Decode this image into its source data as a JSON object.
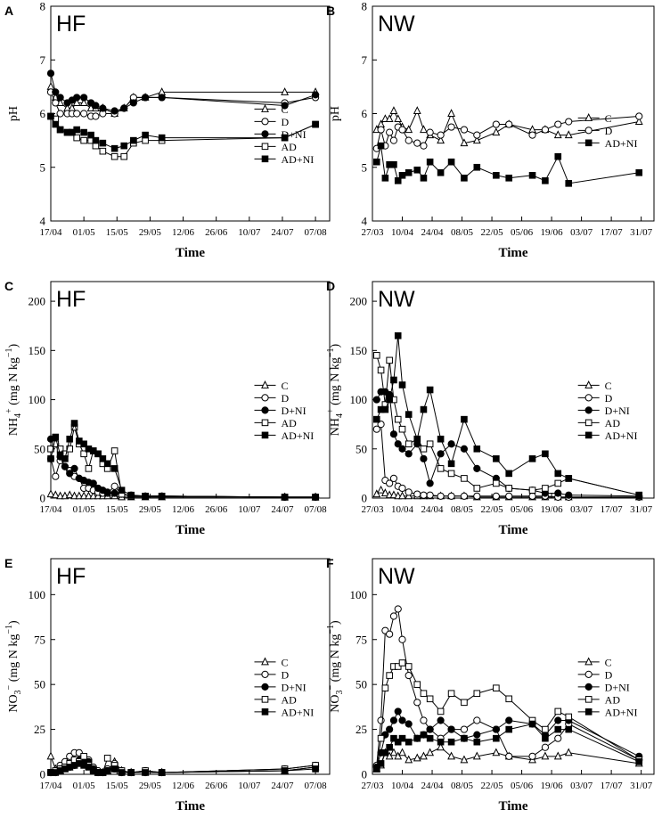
{
  "chart_data": [
    {
      "type": "line",
      "panel_letter": "A",
      "site": "HF",
      "xlabel": "Time",
      "ylabel": "pH",
      "ylim": [
        4,
        8
      ],
      "yticks": [
        4,
        5,
        6,
        7,
        8
      ],
      "xlim": [
        0,
        118
      ],
      "xticks": [
        0,
        14,
        28,
        42,
        56,
        70,
        84,
        98,
        112
      ],
      "xtick_labels": [
        "17/04",
        "01/05",
        "15/05",
        "29/05",
        "12/06",
        "26/06",
        "10/07",
        "24/07",
        "07/08"
      ],
      "x": [
        0,
        2,
        4,
        7,
        9,
        11,
        14,
        17,
        19,
        22,
        27,
        31,
        35,
        40,
        47,
        99,
        112
      ],
      "series": [
        {
          "name": "C",
          "marker": "triangle",
          "values": [
            6.5,
            6.3,
            6.2,
            6.1,
            6.1,
            6.2,
            6.2,
            6.1,
            6.1,
            6.1,
            6.0,
            6.1,
            6.3,
            6.3,
            6.4,
            6.4,
            6.4
          ]
        },
        {
          "name": "D",
          "marker": "circle_open",
          "values": [
            6.4,
            6.2,
            6.0,
            6.0,
            6.0,
            6.0,
            6.0,
            5.95,
            5.95,
            6.0,
            6.0,
            6.1,
            6.3,
            6.3,
            6.3,
            6.2,
            6.3
          ]
        },
        {
          "name": "D+NI",
          "marker": "circle_filled",
          "values": [
            6.75,
            6.4,
            6.3,
            6.2,
            6.25,
            6.3,
            6.3,
            6.2,
            6.15,
            6.1,
            6.05,
            6.1,
            6.2,
            6.3,
            6.3,
            6.15,
            6.35
          ]
        },
        {
          "name": "AD",
          "marker": "square_open",
          "values": [
            5.95,
            5.9,
            5.7,
            5.65,
            5.65,
            5.55,
            5.5,
            5.5,
            5.4,
            5.3,
            5.2,
            5.2,
            5.45,
            5.5,
            5.5,
            5.55,
            5.8
          ]
        },
        {
          "name": "AD+NI",
          "marker": "square_filled",
          "values": [
            5.95,
            5.8,
            5.7,
            5.65,
            5.65,
            5.7,
            5.65,
            5.6,
            5.5,
            5.45,
            5.35,
            5.4,
            5.5,
            5.6,
            5.55,
            5.55,
            5.8
          ]
        }
      ]
    },
    {
      "type": "line",
      "panel_letter": "B",
      "site": "NW",
      "xlabel": "Time",
      "ylabel": "pH",
      "ylim": [
        4,
        8
      ],
      "yticks": [
        4,
        5,
        6,
        7,
        8
      ],
      "xlim": [
        0,
        132
      ],
      "xticks": [
        0,
        14,
        28,
        42,
        56,
        70,
        84,
        98,
        112,
        126
      ],
      "xtick_labels": [
        "27/03",
        "10/04",
        "24/04",
        "08/05",
        "22/05",
        "05/06",
        "19/06",
        "03/07",
        "17/07",
        "31/07"
      ],
      "x": [
        2,
        4,
        6,
        8,
        10,
        12,
        14,
        17,
        21,
        24,
        27,
        32,
        37,
        43,
        49,
        58,
        64,
        75,
        81,
        87,
        92,
        125
      ],
      "series": [
        {
          "name": "C",
          "marker": "triangle",
          "values": [
            5.7,
            5.8,
            5.9,
            5.9,
            6.05,
            5.9,
            5.75,
            5.7,
            6.05,
            5.7,
            5.6,
            5.5,
            6.0,
            5.45,
            5.5,
            5.65,
            5.8,
            5.7,
            5.7,
            5.6,
            5.6,
            5.85
          ]
        },
        {
          "name": "D",
          "marker": "circle_open",
          "values": [
            5.35,
            5.7,
            5.4,
            5.65,
            5.5,
            5.75,
            5.7,
            5.5,
            5.45,
            5.4,
            5.65,
            5.6,
            5.75,
            5.7,
            5.6,
            5.8,
            5.8,
            5.6,
            5.7,
            5.8,
            5.85,
            5.95
          ]
        },
        {
          "name": "AD+NI",
          "marker": "square_filled",
          "values": [
            5.1,
            5.4,
            4.8,
            5.05,
            5.05,
            4.75,
            4.85,
            4.9,
            4.95,
            4.8,
            5.1,
            4.9,
            5.1,
            4.8,
            5.0,
            4.85,
            4.8,
            4.85,
            4.75,
            5.2,
            4.7,
            4.9
          ]
        }
      ]
    },
    {
      "type": "line",
      "panel_letter": "C",
      "site": "HF",
      "xlabel": "Time",
      "ylabel": "NH4+ (mg N kg−1)",
      "ylim": [
        0,
        220
      ],
      "yticks": [
        0,
        50,
        100,
        150,
        200
      ],
      "xlim": [
        0,
        118
      ],
      "xticks": [
        0,
        14,
        28,
        42,
        56,
        70,
        84,
        98,
        112
      ],
      "xtick_labels": [
        "17/04",
        "01/05",
        "15/05",
        "29/05",
        "12/06",
        "26/06",
        "10/07",
        "24/07",
        "07/08"
      ],
      "x": [
        0,
        2,
        4,
        6,
        8,
        10,
        12,
        14,
        16,
        18,
        20,
        22,
        24,
        27,
        30,
        34,
        40,
        47,
        99,
        112
      ],
      "series": [
        {
          "name": "C",
          "marker": "triangle",
          "values": [
            4,
            3,
            2,
            2,
            3,
            2,
            2,
            2,
            2,
            2,
            2,
            2,
            2,
            2,
            1,
            1,
            1,
            1,
            1,
            1
          ]
        },
        {
          "name": "D",
          "marker": "circle_open",
          "values": [
            40,
            22,
            38,
            32,
            28,
            22,
            20,
            10,
            10,
            8,
            6,
            5,
            5,
            12,
            4,
            2,
            2,
            2,
            1,
            1
          ]
        },
        {
          "name": "D+NI",
          "marker": "circle_filled",
          "values": [
            60,
            55,
            42,
            32,
            25,
            30,
            20,
            18,
            16,
            15,
            10,
            8,
            6,
            5,
            4,
            3,
            2,
            2,
            1,
            1
          ]
        },
        {
          "name": "AD",
          "marker": "square_open",
          "values": [
            50,
            55,
            50,
            45,
            50,
            72,
            55,
            45,
            30,
            48,
            45,
            35,
            30,
            48,
            4,
            2,
            2,
            2,
            1,
            1
          ]
        },
        {
          "name": "AD+NI",
          "marker": "square_filled",
          "values": [
            40,
            62,
            44,
            40,
            60,
            76,
            58,
            55,
            50,
            48,
            45,
            40,
            35,
            30,
            8,
            3,
            2,
            2,
            1,
            1
          ]
        }
      ]
    },
    {
      "type": "line",
      "panel_letter": "D",
      "site": "NW",
      "xlabel": "Time",
      "ylabel": "NH4+ (mg N kg−1)",
      "ylim": [
        0,
        220
      ],
      "yticks": [
        0,
        50,
        100,
        150,
        200
      ],
      "xlim": [
        0,
        132
      ],
      "xticks": [
        0,
        14,
        28,
        42,
        56,
        70,
        84,
        98,
        112,
        126
      ],
      "xtick_labels": [
        "27/03",
        "10/04",
        "24/04",
        "08/05",
        "22/05",
        "05/06",
        "19/06",
        "03/07",
        "17/07",
        "31/07"
      ],
      "x": [
        2,
        4,
        6,
        8,
        10,
        12,
        14,
        17,
        21,
        24,
        27,
        32,
        37,
        43,
        49,
        58,
        64,
        75,
        81,
        87,
        92,
        125
      ],
      "series": [
        {
          "name": "C",
          "marker": "triangle",
          "values": [
            4,
            8,
            5,
            3,
            3,
            2,
            2,
            2,
            2,
            2,
            2,
            2,
            2,
            2,
            1,
            1,
            1,
            1,
            1,
            1,
            1,
            1
          ]
        },
        {
          "name": "D",
          "marker": "circle_open",
          "values": [
            70,
            75,
            18,
            15,
            20,
            12,
            10,
            6,
            4,
            3,
            3,
            2,
            2,
            2,
            2,
            2,
            2,
            2,
            2,
            1,
            1,
            1
          ]
        },
        {
          "name": "D+NI",
          "marker": "circle_filled",
          "values": [
            100,
            108,
            108,
            105,
            65,
            55,
            50,
            45,
            55,
            40,
            15,
            45,
            55,
            50,
            30,
            20,
            10,
            8,
            5,
            5,
            3,
            2
          ]
        },
        {
          "name": "AD",
          "marker": "square_open",
          "values": [
            145,
            130,
            95,
            140,
            100,
            80,
            70,
            55,
            60,
            50,
            55,
            30,
            25,
            20,
            10,
            15,
            10,
            8,
            10,
            15,
            20,
            3
          ]
        },
        {
          "name": "AD+NI",
          "marker": "square_filled",
          "values": [
            80,
            90,
            90,
            100,
            120,
            165,
            115,
            85,
            60,
            90,
            110,
            60,
            35,
            80,
            50,
            40,
            25,
            40,
            45,
            25,
            20,
            3
          ]
        }
      ]
    },
    {
      "type": "line",
      "panel_letter": "E",
      "site": "HF",
      "xlabel": "Time",
      "ylabel": "NO3− (mg N kg−1)",
      "ylim": [
        0,
        120
      ],
      "yticks": [
        0,
        25,
        50,
        75,
        100
      ],
      "xlim": [
        0,
        118
      ],
      "xticks": [
        0,
        14,
        28,
        42,
        56,
        70,
        84,
        98,
        112
      ],
      "xtick_labels": [
        "17/04",
        "01/05",
        "15/05",
        "29/05",
        "12/06",
        "26/06",
        "10/07",
        "24/07",
        "07/08"
      ],
      "x": [
        0,
        2,
        4,
        6,
        8,
        10,
        12,
        14,
        16,
        18,
        20,
        22,
        24,
        27,
        30,
        34,
        40,
        47,
        99,
        112
      ],
      "series": [
        {
          "name": "C",
          "marker": "triangle",
          "values": [
            10,
            3,
            2,
            3,
            4,
            6,
            7,
            6,
            6,
            3,
            1,
            1,
            2,
            7,
            2,
            1,
            1,
            1,
            2,
            4
          ]
        },
        {
          "name": "D",
          "marker": "circle_open",
          "values": [
            1,
            2,
            5,
            7,
            10,
            12,
            12,
            9,
            8,
            4,
            2,
            1,
            3,
            6,
            2,
            1,
            2,
            1,
            3,
            5
          ]
        },
        {
          "name": "D+NI",
          "marker": "circle_filled",
          "values": [
            1,
            1,
            3,
            4,
            4,
            5,
            8,
            8,
            7,
            3,
            1,
            1,
            2,
            3,
            1,
            1,
            1,
            1,
            2,
            4
          ]
        },
        {
          "name": "AD",
          "marker": "square_open",
          "values": [
            1,
            2,
            3,
            4,
            6,
            8,
            7,
            10,
            5,
            2,
            1,
            1,
            9,
            5,
            2,
            1,
            2,
            1,
            3,
            5
          ]
        },
        {
          "name": "AD+NI",
          "marker": "square_filled",
          "values": [
            1,
            1,
            2,
            3,
            4,
            5,
            6,
            5,
            4,
            2,
            1,
            1,
            2,
            3,
            1,
            1,
            1,
            1,
            2,
            3
          ]
        }
      ]
    },
    {
      "type": "line",
      "panel_letter": "F",
      "site": "NW",
      "xlabel": "Time",
      "ylabel": "NO3− (mg N kg−1)",
      "ylim": [
        0,
        120
      ],
      "yticks": [
        0,
        25,
        50,
        75,
        100
      ],
      "xlim": [
        0,
        132
      ],
      "xticks": [
        0,
        14,
        28,
        42,
        56,
        70,
        84,
        98,
        112,
        126
      ],
      "xtick_labels": [
        "27/03",
        "10/04",
        "24/04",
        "08/05",
        "22/05",
        "05/06",
        "19/06",
        "03/07",
        "17/07",
        "31/07"
      ],
      "x": [
        2,
        4,
        6,
        8,
        10,
        12,
        14,
        17,
        21,
        24,
        27,
        32,
        37,
        43,
        49,
        58,
        64,
        75,
        81,
        87,
        92,
        125
      ],
      "series": [
        {
          "name": "C",
          "marker": "triangle",
          "values": [
            3,
            5,
            12,
            10,
            12,
            10,
            12,
            8,
            9,
            10,
            12,
            15,
            10,
            8,
            10,
            12,
            10,
            8,
            10,
            10,
            12,
            6
          ]
        },
        {
          "name": "D",
          "marker": "circle_open",
          "values": [
            5,
            30,
            80,
            78,
            88,
            92,
            75,
            55,
            40,
            30,
            25,
            20,
            25,
            25,
            30,
            25,
            10,
            10,
            15,
            20,
            28,
            8
          ]
        },
        {
          "name": "D+NI",
          "marker": "circle_filled",
          "values": [
            4,
            12,
            22,
            25,
            30,
            35,
            30,
            28,
            20,
            22,
            25,
            30,
            25,
            20,
            22,
            25,
            30,
            28,
            22,
            30,
            30,
            10
          ]
        },
        {
          "name": "AD",
          "marker": "square_open",
          "values": [
            3,
            20,
            48,
            55,
            60,
            60,
            62,
            60,
            50,
            45,
            42,
            35,
            45,
            40,
            45,
            48,
            42,
            30,
            25,
            35,
            32,
            8
          ]
        },
        {
          "name": "AD+NI",
          "marker": "square_filled",
          "values": [
            3,
            6,
            12,
            15,
            20,
            18,
            20,
            18,
            20,
            22,
            20,
            18,
            18,
            20,
            18,
            20,
            25,
            28,
            20,
            25,
            25,
            7
          ]
        }
      ]
    }
  ]
}
